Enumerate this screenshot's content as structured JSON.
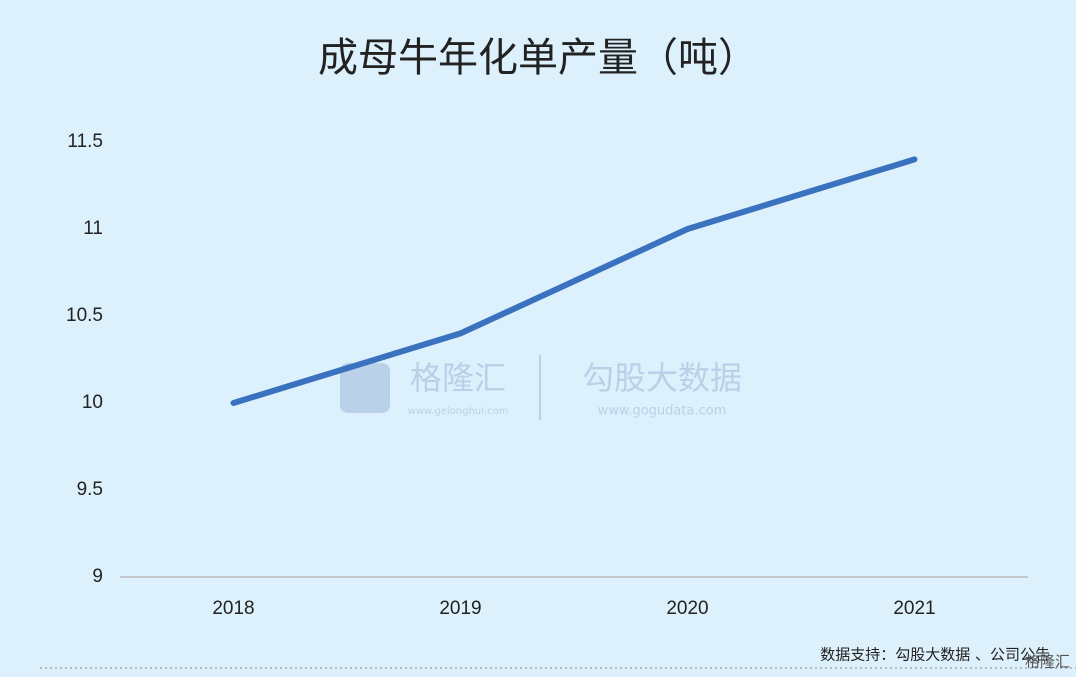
{
  "chart_data": {
    "type": "line",
    "title": "成母牛年化单产量（吨）",
    "categories": [
      "2018",
      "2019",
      "2020",
      "2021"
    ],
    "series": [
      {
        "name": "成母牛年化单产量",
        "color": "#3a72c0",
        "values": [
          10,
          10.4,
          11,
          11.4
        ]
      }
    ],
    "ylim": [
      9,
      11.5
    ],
    "yticks": [
      9,
      9.5,
      10,
      10.5,
      11,
      11.5
    ],
    "grid": false,
    "source": "数据支持：勾股大数据 、公司公告",
    "watermark": {
      "brand": "格隆汇",
      "brand_url": "www.gelonghui.com",
      "partner": "勾股大数据",
      "partner_url": "www.gogudata.com"
    },
    "corner_logo": "格隆汇"
  }
}
